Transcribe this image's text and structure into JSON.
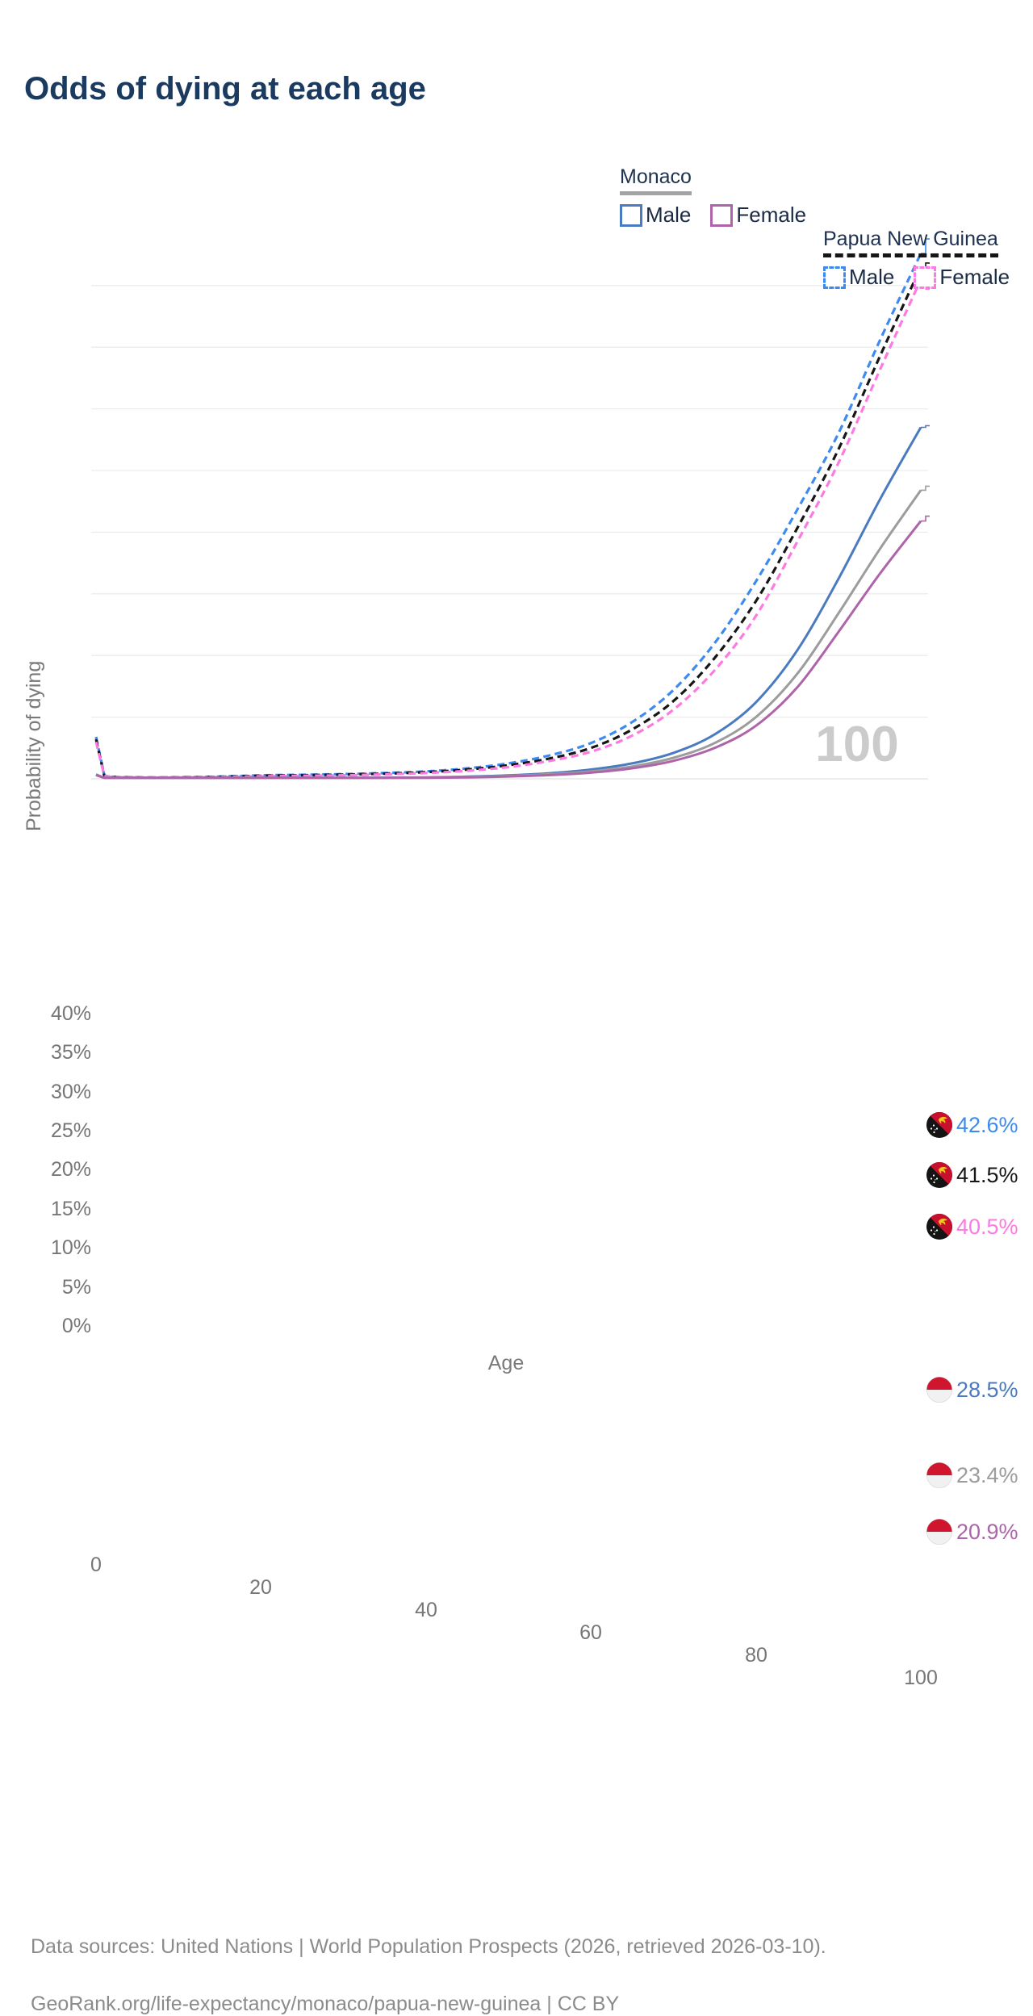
{
  "title": "Odds of dying at each age",
  "legend": {
    "groups": [
      {
        "name": "Monaco",
        "line_style": "solid",
        "underline_color": "#a3a3a3",
        "items": [
          {
            "label": "Male",
            "color": "#4a7abf"
          },
          {
            "label": "Female",
            "color": "#ae64a9"
          }
        ]
      },
      {
        "name": "Papua New Guinea",
        "line_style": "dashed",
        "underline_color": "#161616",
        "items": [
          {
            "label": "Male",
            "color": "#3d8bf0"
          },
          {
            "label": "Female",
            "color": "#fc7ae2"
          }
        ]
      }
    ]
  },
  "axes": {
    "y_label": "Probability of dying",
    "x_label": "Age",
    "y_ticks": [
      {
        "value": 0,
        "label": "0%"
      },
      {
        "value": 5,
        "label": "5%"
      },
      {
        "value": 10,
        "label": "10%"
      },
      {
        "value": 15,
        "label": "15%"
      },
      {
        "value": 20,
        "label": "20%"
      },
      {
        "value": 25,
        "label": "25%"
      },
      {
        "value": 30,
        "label": "30%"
      },
      {
        "value": 35,
        "label": "35%"
      },
      {
        "value": 40,
        "label": "40%"
      }
    ],
    "x_ticks": [
      {
        "value": 0,
        "label": "0"
      },
      {
        "value": 20,
        "label": "20"
      },
      {
        "value": 40,
        "label": "40"
      },
      {
        "value": 60,
        "label": "60"
      },
      {
        "value": 80,
        "label": "80"
      },
      {
        "value": 100,
        "label": "100"
      }
    ]
  },
  "watermark": "100",
  "footer": {
    "line1": "Data sources: United Nations | World Population Prospects (2026, retrieved 2026-03-10).",
    "line2": "GeoRank.org/life-expectancy/monaco/papua-new-guinea | CC BY"
  },
  "chart_data": {
    "type": "line",
    "title": "Odds of dying at each age",
    "xlabel": "Age",
    "ylabel": "Probability of dying",
    "xlim": [
      0,
      100
    ],
    "ylim": [
      0,
      44
    ],
    "grid": "horizontal",
    "legend_position": "top-right",
    "ages": [
      0,
      1,
      5,
      10,
      15,
      20,
      25,
      30,
      35,
      40,
      45,
      50,
      55,
      60,
      65,
      70,
      75,
      80,
      85,
      90,
      95,
      100
    ],
    "series": [
      {
        "name": "Papua New Guinea — Male",
        "country": "Papua New Guinea",
        "sex": "Male",
        "color": "#3d8bf0",
        "dash": true,
        "flag": "papua-new-guinea",
        "end_label": "42.6%",
        "values": [
          3.4,
          0.28,
          0.12,
          0.12,
          0.18,
          0.28,
          0.33,
          0.38,
          0.47,
          0.6,
          0.85,
          1.25,
          1.9,
          2.9,
          4.6,
          7.2,
          11.0,
          16.0,
          21.8,
          28.0,
          35.5,
          42.6
        ]
      },
      {
        "name": "Papua New Guinea — Both sexes",
        "country": "Papua New Guinea",
        "sex": "Both",
        "color": "#161616",
        "dash": true,
        "flag": "papua-new-guinea",
        "end_label": "41.5%",
        "values": [
          3.2,
          0.26,
          0.11,
          0.11,
          0.16,
          0.24,
          0.29,
          0.34,
          0.42,
          0.54,
          0.75,
          1.1,
          1.65,
          2.5,
          4.0,
          6.3,
          9.8,
          14.4,
          20.3,
          26.7,
          34.2,
          41.5
        ]
      },
      {
        "name": "Papua New Guinea — Female",
        "country": "Papua New Guinea",
        "sex": "Female",
        "color": "#fc7ae2",
        "dash": true,
        "flag": "papua-new-guinea",
        "end_label": "40.5%",
        "values": [
          3.0,
          0.24,
          0.1,
          0.1,
          0.14,
          0.2,
          0.24,
          0.29,
          0.36,
          0.47,
          0.65,
          0.95,
          1.45,
          2.2,
          3.5,
          5.6,
          8.8,
          13.2,
          19.2,
          25.6,
          33.1,
          40.5
        ]
      },
      {
        "name": "Monaco — Male",
        "country": "Monaco",
        "sex": "Male",
        "color": "#4a7abf",
        "dash": false,
        "flag": "monaco",
        "end_label": "28.5%",
        "values": [
          0.35,
          0.03,
          0.02,
          0.02,
          0.03,
          0.05,
          0.06,
          0.07,
          0.09,
          0.12,
          0.18,
          0.28,
          0.45,
          0.75,
          1.25,
          2.1,
          3.6,
          6.2,
          10.4,
          16.2,
          22.6,
          28.5
        ]
      },
      {
        "name": "Monaco — Both sexes",
        "country": "Monaco",
        "sex": "Both",
        "color": "#9c9c9c",
        "dash": false,
        "flag": "monaco",
        "end_label": "23.4%",
        "values": [
          0.32,
          0.03,
          0.02,
          0.02,
          0.03,
          0.04,
          0.05,
          0.06,
          0.08,
          0.1,
          0.15,
          0.23,
          0.37,
          0.6,
          1.0,
          1.7,
          2.9,
          5.0,
          8.5,
          13.4,
          18.6,
          23.4
        ]
      },
      {
        "name": "Monaco — Female",
        "country": "Monaco",
        "sex": "Female",
        "color": "#ae64a9",
        "dash": false,
        "flag": "monaco",
        "end_label": "20.9%",
        "values": [
          0.3,
          0.02,
          0.01,
          0.01,
          0.02,
          0.03,
          0.04,
          0.05,
          0.06,
          0.08,
          0.12,
          0.19,
          0.3,
          0.5,
          0.85,
          1.45,
          2.5,
          4.3,
          7.4,
          11.9,
          16.6,
          20.9
        ]
      }
    ],
    "flag_colors": {
      "monaco_red": "#d0152f",
      "monaco_white": "#f1f1f1",
      "png_black": "#141414",
      "png_red": "#c8102e",
      "png_yellow": "#f5c518",
      "png_star": "#ffffff"
    },
    "gridline_color": "#ececec",
    "axis_line_color": "#e0e0e0",
    "watermark_color": "#cbcbcb"
  }
}
